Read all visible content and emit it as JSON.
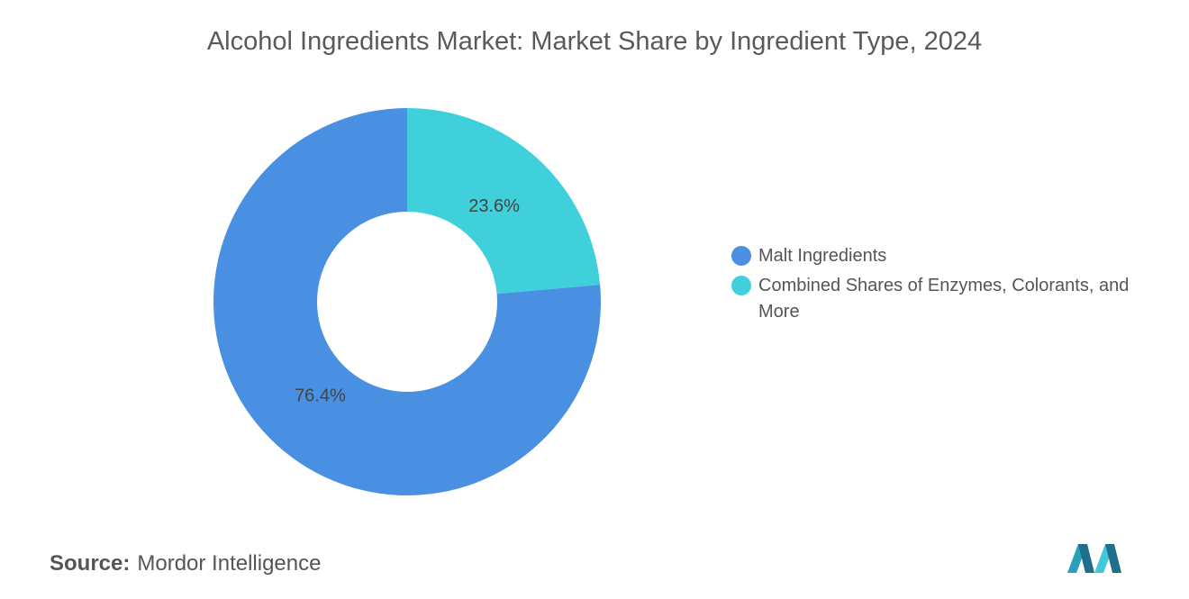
{
  "chart_data": {
    "type": "donut",
    "title": "Alcohol Ingredients Market: Market Share by Ingredient Type, 2024",
    "categories": [
      "Malt Ingredients",
      "Combined Shares of Enzymes, Colorants, and More"
    ],
    "values": [
      76.4,
      23.6
    ],
    "value_labels": [
      "76.4%",
      "23.6%"
    ],
    "colors": [
      "#4a90e2",
      "#40d0dc"
    ],
    "legend_position": "right"
  },
  "source": {
    "label": "Source:",
    "text": "Mordor Intelligence"
  }
}
